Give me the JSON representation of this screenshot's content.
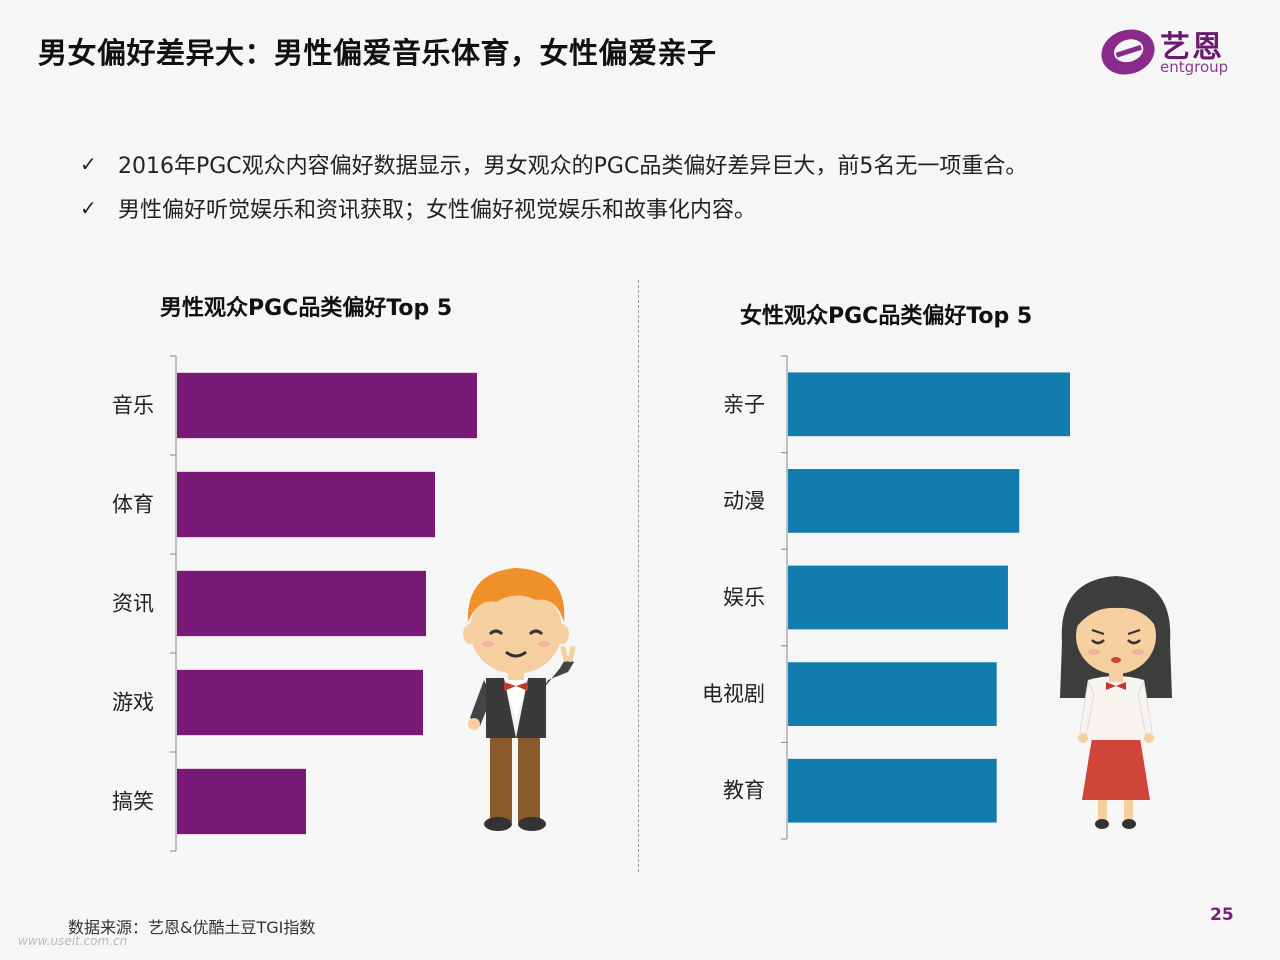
{
  "slide": {
    "title": "男女偏好差异大：男性偏爱音乐体育，女性偏爱亲子",
    "bullets": [
      "2016年PGC观众内容偏好数据显示，男女观众的PGC品类偏好差异巨大，前5名无一项重合。",
      "男性偏好听觉娱乐和资讯获取；女性偏好视觉娱乐和故事化内容。"
    ],
    "check_mark": "✓",
    "source": "数据来源：艺恩&优酷土豆TGI指数",
    "page_number": "25",
    "watermark": "www.useit.com.cn"
  },
  "logo": {
    "cn": "艺恩",
    "en": "entgroup"
  },
  "colors": {
    "male_bar": "#7a1a78",
    "female_bar": "#127dad",
    "logo_accent": "#8a2a8a"
  },
  "chart_data": [
    {
      "type": "bar",
      "orientation": "horizontal",
      "title": "男性观众PGC品类偏好Top 5",
      "categories": [
        "音乐",
        "体育",
        "资讯",
        "游戏",
        "搞笑"
      ],
      "values": [
        100,
        86,
        83,
        82,
        43
      ],
      "xlim": [
        0,
        100
      ],
      "grid": false,
      "legend": "none"
    },
    {
      "type": "bar",
      "orientation": "horizontal",
      "title": "女性观众PGC品类偏好Top 5",
      "categories": [
        "亲子",
        "动漫",
        "娱乐",
        "电视剧",
        "教育"
      ],
      "values": [
        100,
        82,
        78,
        74,
        74
      ],
      "xlim": [
        0,
        100
      ],
      "grid": false,
      "legend": "none"
    }
  ]
}
